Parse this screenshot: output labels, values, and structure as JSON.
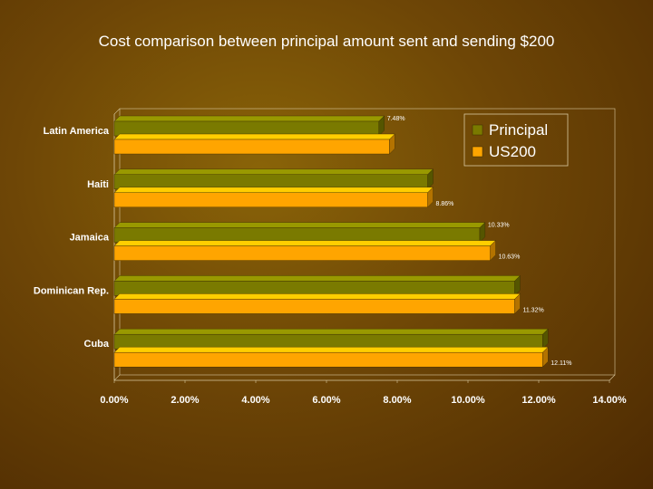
{
  "chart_data": {
    "type": "bar",
    "orientation": "horizontal",
    "title": "Cost comparison between principal amount sent and sending $200",
    "categories": [
      "Latin America",
      "Haiti",
      "Jamaica",
      "Dominican Rep.",
      "Cuba"
    ],
    "series": [
      {
        "name": "Principal",
        "color": "#7a7a00",
        "values": [
          7.48,
          8.86,
          10.33,
          11.32,
          12.11
        ],
        "labels": [
          "7.48%",
          "",
          "10.33%",
          "",
          ""
        ]
      },
      {
        "name": "US200",
        "color": "#ffa500",
        "values": [
          7.78,
          8.86,
          10.63,
          11.32,
          12.11
        ],
        "labels": [
          "",
          "8.86%",
          "10.63%",
          "11.32%",
          "12.11%"
        ]
      }
    ],
    "xlim": [
      0,
      14
    ],
    "x_ticks": [
      "0.00%",
      "2.00%",
      "4.00%",
      "6.00%",
      "8.00%",
      "10.00%",
      "12.00%",
      "14.00%"
    ],
    "legend_position": "top-right",
    "grid": false
  }
}
